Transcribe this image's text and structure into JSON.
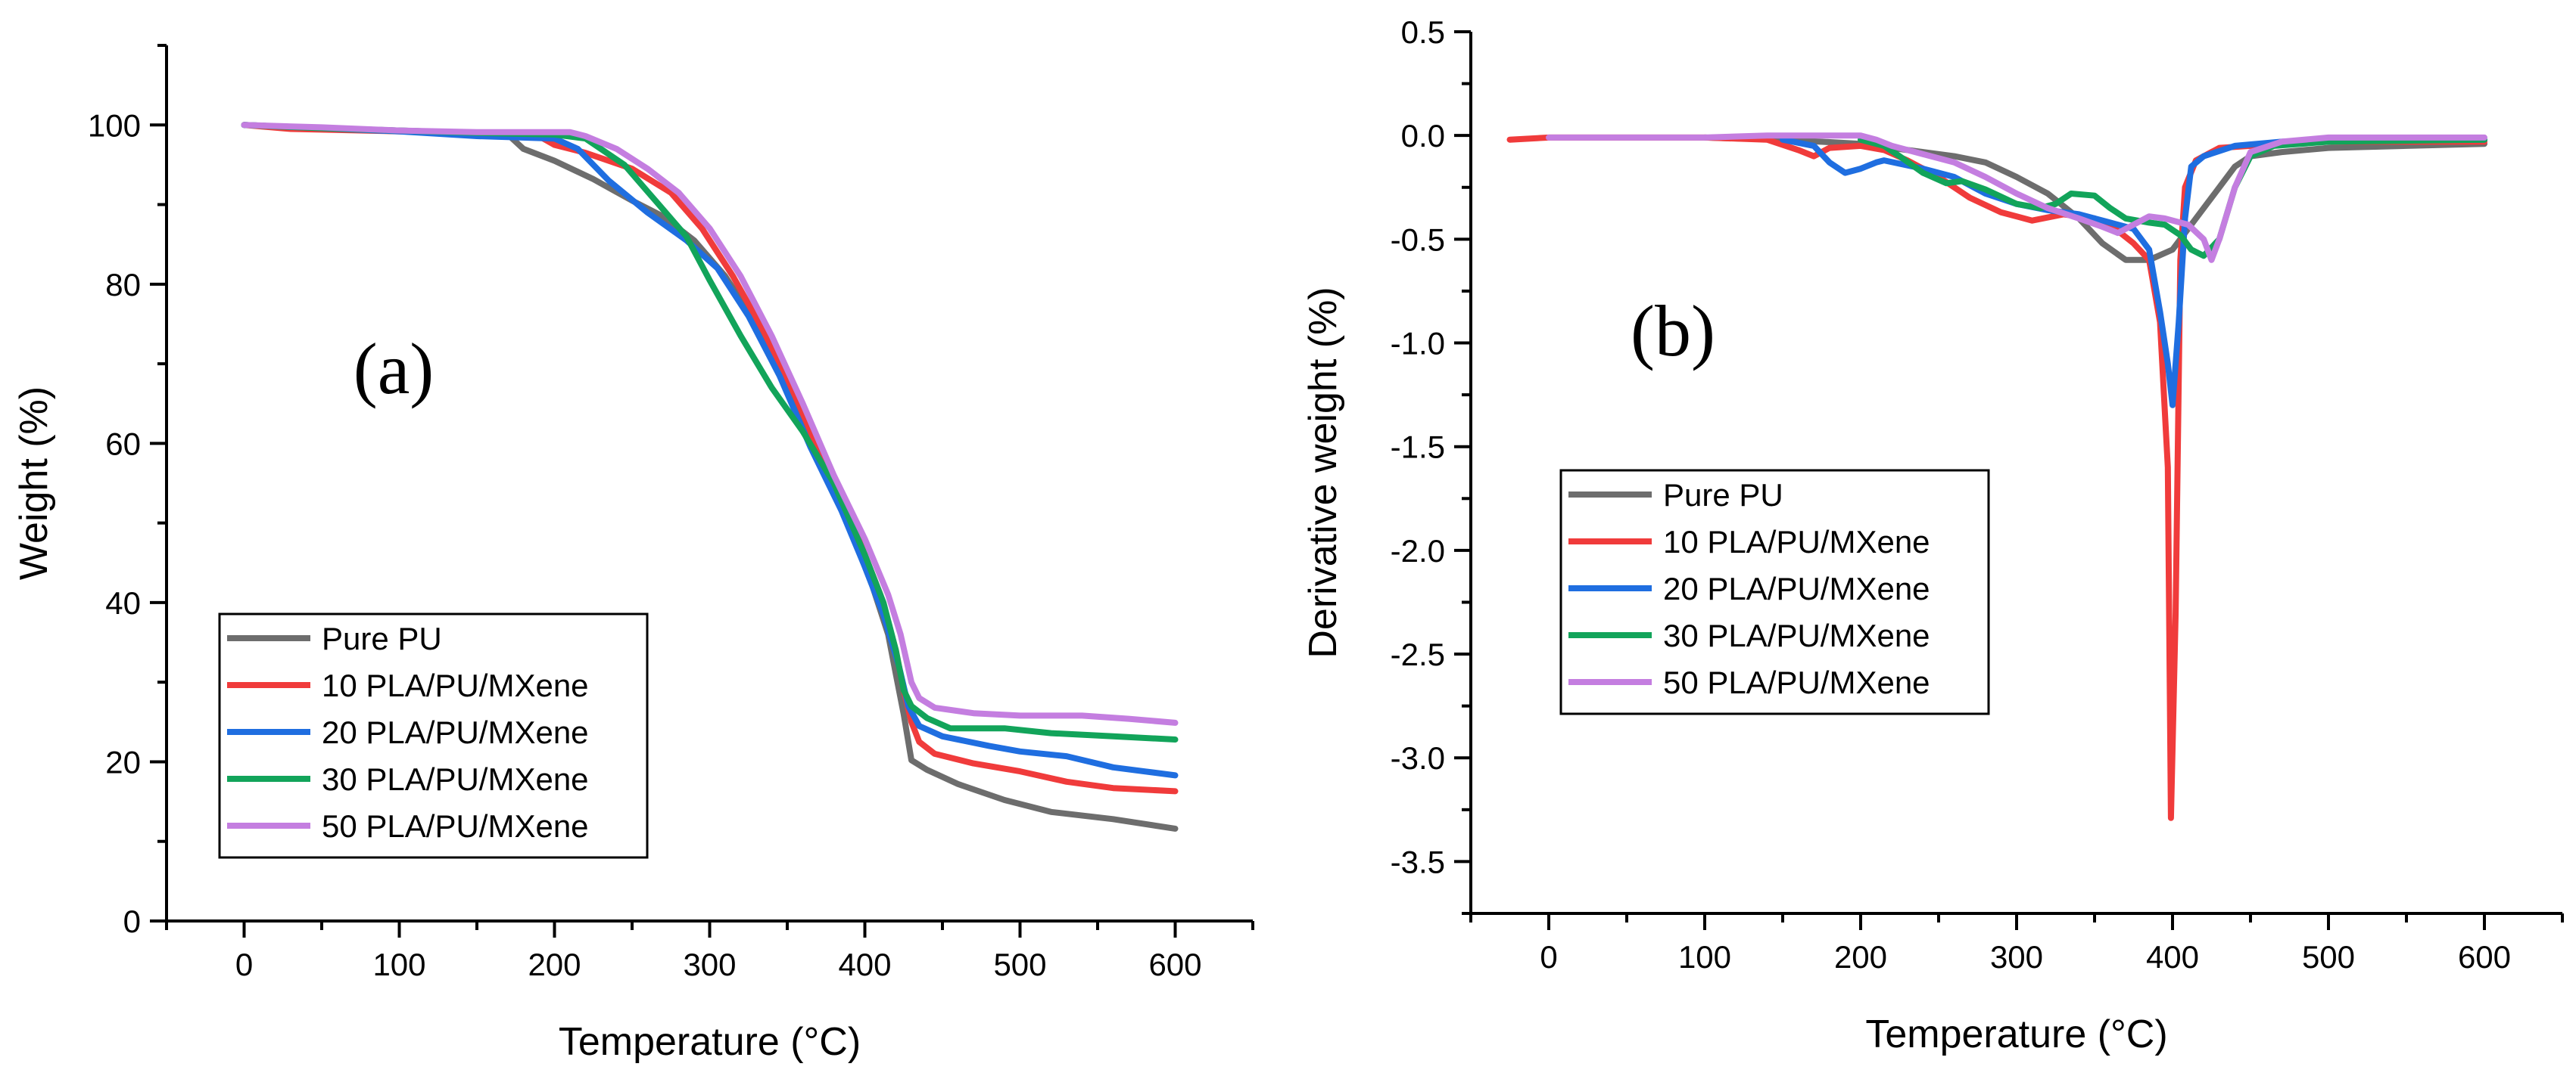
{
  "chart_data": [
    {
      "type": "line",
      "panel_label": "(a)",
      "xlabel": "Temperature (°C)",
      "ylabel": "Weight (%)",
      "xlim": [
        -50,
        650
      ],
      "ylim": [
        0,
        110
      ],
      "xticks": [
        0,
        100,
        200,
        300,
        400,
        500,
        600
      ],
      "yticks": [
        0,
        20,
        40,
        60,
        80,
        100
      ],
      "grid": false,
      "legend": "lower-left",
      "series": [
        {
          "name": "Pure PU",
          "color": "#6d6d6d",
          "points": [
            [
              0,
              100
            ],
            [
              50,
              99.6
            ],
            [
              100,
              99.3
            ],
            [
              150,
              99.0
            ],
            [
              170,
              98.8
            ],
            [
              180,
              97.0
            ],
            [
              200,
              95.5
            ],
            [
              225,
              93.2
            ],
            [
              250,
              90.5
            ],
            [
              270,
              88.5
            ],
            [
              290,
              85.5
            ],
            [
              310,
              81
            ],
            [
              330,
              75
            ],
            [
              350,
              67.5
            ],
            [
              370,
              58.5
            ],
            [
              390,
              49.5
            ],
            [
              405,
              42
            ],
            [
              415,
              36
            ],
            [
              420,
              31
            ],
            [
              425,
              26
            ],
            [
              430,
              20.2
            ],
            [
              440,
              19
            ],
            [
              460,
              17.2
            ],
            [
              490,
              15.2
            ],
            [
              520,
              13.7
            ],
            [
              560,
              12.8
            ],
            [
              600,
              11.6
            ]
          ]
        },
        {
          "name": "10 PLA/PU/MXene",
          "color": "#f03b3b",
          "points": [
            [
              0,
              100
            ],
            [
              30,
              99.5
            ],
            [
              100,
              99.2
            ],
            [
              150,
              98.9
            ],
            [
              190,
              98.6
            ],
            [
              200,
              97.5
            ],
            [
              220,
              96.5
            ],
            [
              250,
              94.5
            ],
            [
              275,
              91.5
            ],
            [
              295,
              87
            ],
            [
              315,
              81
            ],
            [
              335,
              74
            ],
            [
              355,
              66
            ],
            [
              375,
              57
            ],
            [
              395,
              48.5
            ],
            [
              410,
              41
            ],
            [
              420,
              34
            ],
            [
              425,
              29
            ],
            [
              430,
              25
            ],
            [
              435,
              22.5
            ],
            [
              445,
              21
            ],
            [
              470,
              19.8
            ],
            [
              500,
              18.8
            ],
            [
              530,
              17.5
            ],
            [
              560,
              16.7
            ],
            [
              600,
              16.3
            ]
          ]
        },
        {
          "name": "20 PLA/PU/MXene",
          "color": "#1f6ee0",
          "points": [
            [
              0,
              100
            ],
            [
              50,
              99.6
            ],
            [
              100,
              99.2
            ],
            [
              150,
              98.6
            ],
            [
              200,
              98.3
            ],
            [
              215,
              97
            ],
            [
              235,
              93
            ],
            [
              260,
              89
            ],
            [
              285,
              85.5
            ],
            [
              305,
              82
            ],
            [
              325,
              76
            ],
            [
              345,
              68.5
            ],
            [
              365,
              59.5
            ],
            [
              385,
              51.5
            ],
            [
              400,
              44.5
            ],
            [
              412,
              38.5
            ],
            [
              422,
              32
            ],
            [
              428,
              27
            ],
            [
              435,
              24.5
            ],
            [
              450,
              23.2
            ],
            [
              480,
              22
            ],
            [
              500,
              21.3
            ],
            [
              530,
              20.7
            ],
            [
              560,
              19.3
            ],
            [
              600,
              18.3
            ]
          ]
        },
        {
          "name": "30 PLA/PU/MXene",
          "color": "#12a45a",
          "points": [
            [
              0,
              100
            ],
            [
              50,
              99.6
            ],
            [
              100,
              99.3
            ],
            [
              150,
              99
            ],
            [
              200,
              98.8
            ],
            [
              220,
              98.3
            ],
            [
              245,
              95
            ],
            [
              265,
              90.5
            ],
            [
              285,
              86
            ],
            [
              300,
              80.5
            ],
            [
              320,
              73.5
            ],
            [
              340,
              67
            ],
            [
              360,
              61.5
            ],
            [
              380,
              55
            ],
            [
              400,
              46
            ],
            [
              412,
              40
            ],
            [
              420,
              34
            ],
            [
              425,
              29
            ],
            [
              430,
              27
            ],
            [
              440,
              25.5
            ],
            [
              455,
              24.2
            ],
            [
              490,
              24.2
            ],
            [
              520,
              23.6
            ],
            [
              560,
              23.2
            ],
            [
              600,
              22.8
            ]
          ]
        },
        {
          "name": "50 PLA/PU/MXene",
          "color": "#c47ee0",
          "points": [
            [
              0,
              100
            ],
            [
              50,
              99.7
            ],
            [
              100,
              99.3
            ],
            [
              150,
              99.1
            ],
            [
              210,
              99.1
            ],
            [
              220,
              98.6
            ],
            [
              240,
              97
            ],
            [
              260,
              94.5
            ],
            [
              280,
              91.5
            ],
            [
              300,
              87
            ],
            [
              320,
              81
            ],
            [
              340,
              73.5
            ],
            [
              360,
              65
            ],
            [
              380,
              56
            ],
            [
              400,
              48
            ],
            [
              415,
              41
            ],
            [
              423,
              36
            ],
            [
              430,
              30
            ],
            [
              435,
              28
            ],
            [
              445,
              26.8
            ],
            [
              470,
              26.1
            ],
            [
              500,
              25.8
            ],
            [
              540,
              25.8
            ],
            [
              570,
              25.4
            ],
            [
              600,
              24.9
            ]
          ]
        }
      ]
    },
    {
      "type": "line",
      "panel_label": "(b)",
      "xlabel": "Temperature (°C)",
      "ylabel": "Derivative weight (%)",
      "xlim": [
        -50,
        650
      ],
      "ylim": [
        -3.75,
        0.5
      ],
      "xticks": [
        0,
        100,
        200,
        300,
        400,
        500,
        600
      ],
      "yticks": [
        0.5,
        0.0,
        -0.5,
        -1.0,
        -1.5,
        -2.0,
        -2.5,
        -3.0,
        -3.5
      ],
      "ytick_labels": [
        "0.5",
        "0.0",
        "-0.5",
        "-1.0",
        "-1.5",
        "-2.0",
        "-2.5",
        "-3.0",
        "-3.5"
      ],
      "grid": false,
      "legend": "center-left",
      "series": [
        {
          "name": "Pure PU",
          "color": "#6d6d6d",
          "points": [
            [
              100,
              -0.01
            ],
            [
              150,
              -0.02
            ],
            [
              200,
              -0.04
            ],
            [
              230,
              -0.07
            ],
            [
              260,
              -0.1
            ],
            [
              280,
              -0.13
            ],
            [
              300,
              -0.2
            ],
            [
              320,
              -0.28
            ],
            [
              340,
              -0.4
            ],
            [
              355,
              -0.52
            ],
            [
              370,
              -0.6
            ],
            [
              385,
              -0.6
            ],
            [
              400,
              -0.55
            ],
            [
              410,
              -0.45
            ],
            [
              420,
              -0.35
            ],
            [
              430,
              -0.25
            ],
            [
              440,
              -0.15
            ],
            [
              450,
              -0.1
            ],
            [
              470,
              -0.08
            ],
            [
              500,
              -0.06
            ],
            [
              550,
              -0.05
            ],
            [
              600,
              -0.04
            ]
          ]
        },
        {
          "name": "10 PLA/PU/MXene",
          "color": "#f03b3b",
          "points": [
            [
              -25,
              -0.02
            ],
            [
              0,
              -0.01
            ],
            [
              50,
              -0.01
            ],
            [
              100,
              -0.01
            ],
            [
              140,
              -0.02
            ],
            [
              160,
              -0.07
            ],
            [
              170,
              -0.1
            ],
            [
              180,
              -0.06
            ],
            [
              200,
              -0.05
            ],
            [
              215,
              -0.07
            ],
            [
              230,
              -0.12
            ],
            [
              250,
              -0.2
            ],
            [
              270,
              -0.3
            ],
            [
              290,
              -0.37
            ],
            [
              310,
              -0.41
            ],
            [
              330,
              -0.38
            ],
            [
              350,
              -0.4
            ],
            [
              365,
              -0.46
            ],
            [
              375,
              -0.52
            ],
            [
              385,
              -0.6
            ],
            [
              392,
              -0.9
            ],
            [
              397,
              -1.6
            ],
            [
              399,
              -3.29
            ],
            [
              402,
              -2.3
            ],
            [
              405,
              -0.6
            ],
            [
              408,
              -0.25
            ],
            [
              415,
              -0.12
            ],
            [
              430,
              -0.06
            ],
            [
              450,
              -0.05
            ],
            [
              500,
              -0.03
            ],
            [
              600,
              -0.03
            ]
          ]
        },
        {
          "name": "20 PLA/PU/MXene",
          "color": "#1f6ee0",
          "points": [
            [
              150,
              -0.02
            ],
            [
              170,
              -0.05
            ],
            [
              180,
              -0.13
            ],
            [
              190,
              -0.18
            ],
            [
              200,
              -0.16
            ],
            [
              210,
              -0.13
            ],
            [
              215,
              -0.12
            ],
            [
              240,
              -0.16
            ],
            [
              260,
              -0.2
            ],
            [
              280,
              -0.28
            ],
            [
              300,
              -0.33
            ],
            [
              320,
              -0.36
            ],
            [
              340,
              -0.38
            ],
            [
              360,
              -0.42
            ],
            [
              375,
              -0.45
            ],
            [
              385,
              -0.55
            ],
            [
              392,
              -0.85
            ],
            [
              397,
              -1.1
            ],
            [
              400,
              -1.3
            ],
            [
              404,
              -0.9
            ],
            [
              408,
              -0.4
            ],
            [
              412,
              -0.15
            ],
            [
              420,
              -0.1
            ],
            [
              440,
              -0.05
            ],
            [
              470,
              -0.03
            ],
            [
              520,
              -0.02
            ],
            [
              600,
              -0.02
            ]
          ]
        },
        {
          "name": "30 PLA/PU/MXene",
          "color": "#12a45a",
          "points": [
            [
              200,
              -0.02
            ],
            [
              215,
              -0.05
            ],
            [
              225,
              -0.1
            ],
            [
              240,
              -0.18
            ],
            [
              255,
              -0.23
            ],
            [
              265,
              -0.22
            ],
            [
              280,
              -0.26
            ],
            [
              300,
              -0.33
            ],
            [
              315,
              -0.35
            ],
            [
              325,
              -0.33
            ],
            [
              335,
              -0.28
            ],
            [
              350,
              -0.29
            ],
            [
              360,
              -0.35
            ],
            [
              370,
              -0.4
            ],
            [
              385,
              -0.42
            ],
            [
              395,
              -0.43
            ],
            [
              405,
              -0.48
            ],
            [
              412,
              -0.55
            ],
            [
              420,
              -0.58
            ],
            [
              430,
              -0.5
            ],
            [
              440,
              -0.25
            ],
            [
              450,
              -0.1
            ],
            [
              465,
              -0.05
            ],
            [
              500,
              -0.03
            ],
            [
              600,
              -0.02
            ]
          ]
        },
        {
          "name": "50 PLA/PU/MXene",
          "color": "#c47ee0",
          "points": [
            [
              0,
              -0.01
            ],
            [
              100,
              -0.01
            ],
            [
              140,
              0.0
            ],
            [
              200,
              0.0
            ],
            [
              210,
              -0.02
            ],
            [
              220,
              -0.05
            ],
            [
              240,
              -0.09
            ],
            [
              260,
              -0.13
            ],
            [
              280,
              -0.2
            ],
            [
              300,
              -0.28
            ],
            [
              320,
              -0.35
            ],
            [
              340,
              -0.4
            ],
            [
              355,
              -0.44
            ],
            [
              365,
              -0.47
            ],
            [
              375,
              -0.43
            ],
            [
              385,
              -0.39
            ],
            [
              395,
              -0.4
            ],
            [
              410,
              -0.43
            ],
            [
              420,
              -0.5
            ],
            [
              425,
              -0.6
            ],
            [
              430,
              -0.5
            ],
            [
              440,
              -0.25
            ],
            [
              450,
              -0.08
            ],
            [
              470,
              -0.03
            ],
            [
              500,
              -0.01
            ],
            [
              600,
              -0.01
            ]
          ]
        }
      ]
    }
  ]
}
